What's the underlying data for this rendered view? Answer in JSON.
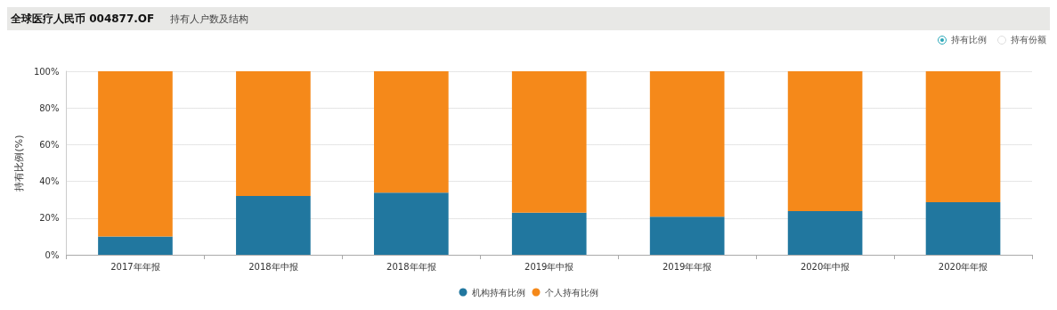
{
  "chart_data": {
    "type": "bar",
    "title": "全球医疗人民币 004877.OF",
    "subtitle": "持有人户数及结构",
    "ylabel": "持有比例(%)",
    "annotations": [
      "持有比例",
      "持有份额"
    ],
    "categories": [
      "2017年年报",
      "2018年中报",
      "2018年年报",
      "2019年中报",
      "2019年年报",
      "2020年中报",
      "2020年年报"
    ],
    "series": [
      {
        "name": "机构持有比例",
        "color": "#21779f",
        "values": [
          10.0,
          32.0,
          33.8,
          22.9,
          20.8,
          23.8,
          28.6
        ]
      },
      {
        "name": "个人持有比例",
        "color": "#f5891a",
        "values": [
          90.0,
          68.0,
          66.2,
          77.1,
          79.2,
          76.2,
          71.4
        ]
      }
    ],
    "stacked": true,
    "ylim": [
      0,
      100
    ],
    "yticks": [
      {
        "value": 0,
        "label": "0%"
      },
      {
        "value": 20,
        "label": "20%"
      },
      {
        "value": 40,
        "label": "40%"
      },
      {
        "value": 60,
        "label": "60%"
      },
      {
        "value": 80,
        "label": "80%"
      },
      {
        "value": 100,
        "label": "100%"
      }
    ],
    "grid": "y",
    "legend": "bottom"
  }
}
